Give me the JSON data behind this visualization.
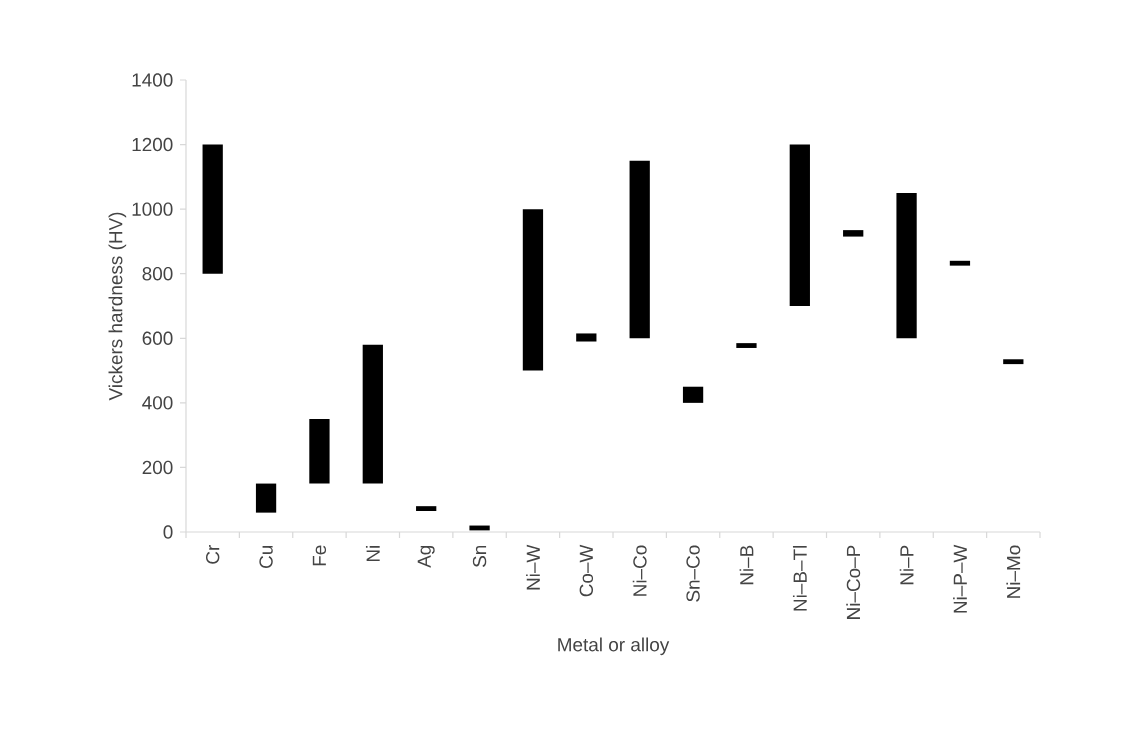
{
  "chart_data": {
    "type": "bar",
    "xlabel": "Metal or alloy",
    "ylabel": "Vickers hardness (HV)",
    "categories": [
      "Cr",
      "Cu",
      "Fe",
      "Ni",
      "Ag",
      "Sn",
      "Ni–W",
      "Co–W",
      "Ni–Co",
      "Sn–Co",
      "Ni–B",
      "Ni–B–Tl",
      "Ni–Co–P",
      "Ni–P",
      "Ni–P–W",
      "Ni–Mo"
    ],
    "base": [
      800,
      60,
      150,
      150,
      65,
      5,
      500,
      590,
      600,
      400,
      570,
      700,
      915,
      600,
      825,
      520
    ],
    "values": [
      400,
      90,
      200,
      430,
      15,
      15,
      500,
      25,
      550,
      50,
      15,
      500,
      20,
      450,
      15,
      15
    ],
    "color": "#000000",
    "ylim": [
      0,
      1400
    ],
    "yticks": [
      0,
      200,
      400,
      600,
      800,
      1000,
      1200,
      1400
    ]
  }
}
